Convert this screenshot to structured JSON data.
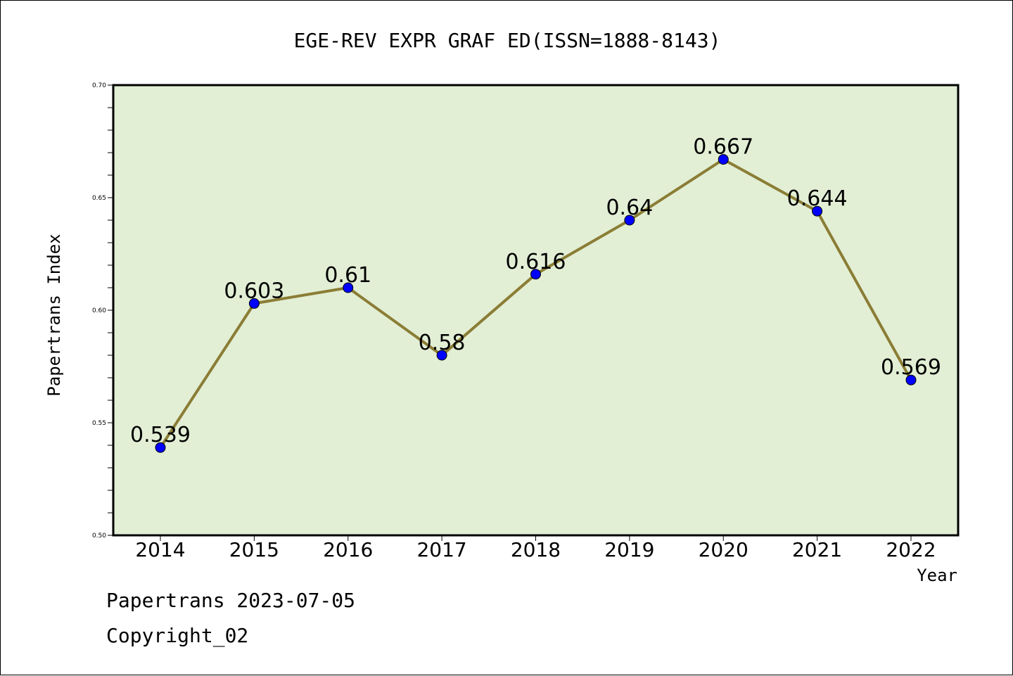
{
  "chart_data": {
    "type": "line",
    "title": "EGE-REV EXPR GRAF ED(ISSN=1888-8143)",
    "xlabel": "Year",
    "ylabel": "Papertrans Index",
    "categories": [
      "2014",
      "2015",
      "2016",
      "2017",
      "2018",
      "2019",
      "2020",
      "2021",
      "2022"
    ],
    "values": [
      0.539,
      0.603,
      0.61,
      0.58,
      0.616,
      0.64,
      0.667,
      0.644,
      0.569
    ],
    "data_labels": [
      "0.539",
      "0.603",
      "0.61",
      "0.58",
      "0.616",
      "0.64",
      "0.667",
      "0.644",
      "0.569"
    ],
    "ylim": [
      0.5,
      0.7
    ],
    "yticks": [
      "0.50",
      "0.55",
      "0.60",
      "0.65",
      "0.70"
    ],
    "grid": false,
    "colors": {
      "plot_background": "#e2efd5",
      "line": "#8b7d35",
      "marker": "#0000ff"
    }
  },
  "footer": {
    "date_text": "Papertrans 2023-07-05",
    "copyright_text": "Copyright_02"
  }
}
